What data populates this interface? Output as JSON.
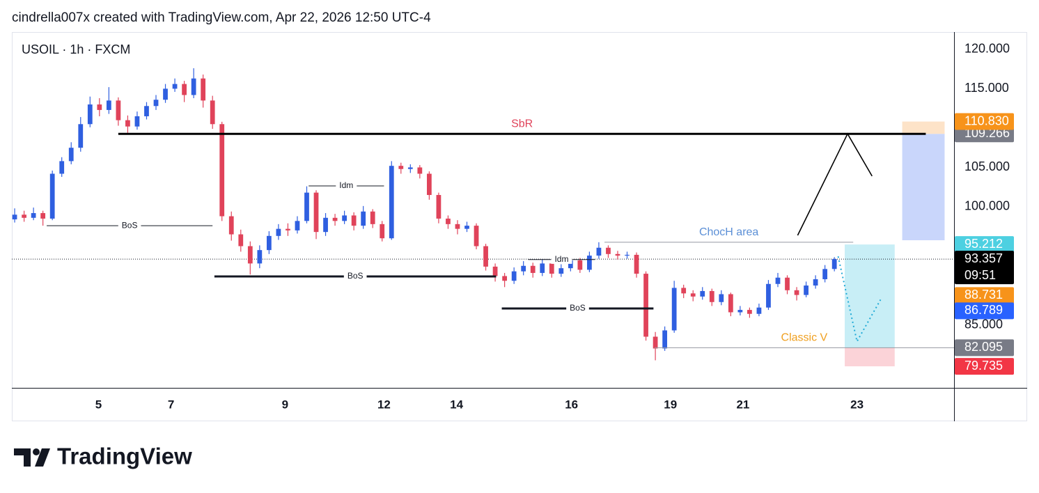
{
  "chart_data": {
    "type": "candlestick",
    "credit": "cindrella007x created with TradingView.com, Apr 22, 2026 12:50 UTC-4",
    "title": "USOIL · 1h · FXCM",
    "brand": "TradingView",
    "up_color": "#2f5fe0",
    "down_color": "#e0435a",
    "open": [
      98.4,
      99.0,
      98.6,
      99.2,
      98.5,
      104.2,
      105.8,
      107.5,
      110.5,
      113.0,
      112.3,
      113.5,
      111.0,
      110.2,
      111.5,
      112.8,
      113.6,
      115.0,
      115.6,
      114.2,
      116.3,
      113.5,
      110.5,
      98.8,
      96.5,
      95.0,
      92.8,
      94.5,
      96.3,
      97.2,
      97.0,
      98.2,
      101.8,
      96.8,
      98.6,
      98.2,
      98.9,
      97.6,
      99.4,
      97.8,
      96.0,
      105.2,
      104.8,
      105.0,
      104.2,
      101.5,
      98.5,
      97.8,
      97.2,
      97.6,
      95.0,
      92.4,
      91.2,
      90.6,
      91.8,
      92.5,
      91.6,
      92.8,
      91.5,
      92.2,
      93.2,
      92.0,
      93.8,
      94.8,
      94.0,
      93.8,
      93.9,
      91.5,
      83.5,
      82.0,
      84.3,
      89.7,
      89.0,
      88.6,
      89.3,
      87.9,
      88.9,
      86.6,
      86.9,
      86.4,
      87.2,
      90.2,
      91.0,
      89.4,
      88.8,
      90.0,
      90.8,
      92.1
    ],
    "high": [
      99.8,
      99.5,
      99.9,
      99.5,
      104.6,
      106.3,
      108.2,
      111.4,
      114.0,
      113.8,
      115.2,
      113.9,
      111.6,
      112.1,
      113.3,
      114.2,
      115.6,
      116.3,
      116.0,
      117.6,
      116.8,
      114.1,
      110.8,
      99.4,
      97.1,
      95.6,
      95.1,
      96.9,
      97.8,
      97.9,
      98.8,
      102.6,
      102.1,
      99.2,
      99.1,
      99.5,
      99.3,
      100.1,
      99.7,
      98.2,
      105.8,
      105.6,
      105.4,
      105.3,
      104.5,
      101.8,
      98.9,
      98.3,
      98.1,
      97.9,
      95.3,
      92.8,
      91.6,
      92.3,
      93.1,
      92.9,
      93.3,
      93.1,
      92.7,
      93.7,
      93.5,
      94.3,
      95.5,
      95.1,
      94.4,
      94.3,
      94.2,
      91.8,
      84.1,
      84.8,
      90.6,
      90.1,
      89.4,
      89.8,
      89.6,
      89.4,
      89.1,
      87.4,
      87.2,
      87.7,
      90.7,
      91.6,
      91.3,
      89.8,
      90.5,
      91.3,
      92.6,
      93.6
    ],
    "low": [
      98.0,
      98.1,
      98.3,
      97.6,
      98.3,
      103.8,
      105.4,
      107.0,
      110.1,
      111.5,
      111.8,
      110.3,
      109.4,
      109.8,
      111.1,
      112.3,
      113.2,
      114.6,
      113.3,
      113.8,
      112.6,
      109.9,
      98.2,
      95.7,
      94.3,
      91.4,
      92.2,
      94.0,
      95.8,
      96.3,
      96.6,
      97.9,
      95.9,
      96.3,
      97.6,
      97.8,
      97.0,
      97.2,
      97.3,
      95.6,
      95.8,
      104.2,
      104.3,
      103.6,
      100.9,
      97.9,
      97.2,
      96.5,
      96.8,
      94.6,
      91.9,
      90.5,
      89.8,
      90.2,
      91.3,
      91.0,
      91.2,
      91.0,
      91.1,
      91.8,
      91.6,
      91.7,
      93.4,
      93.5,
      93.3,
      93.4,
      91.0,
      83.0,
      80.5,
      81.7,
      84.0,
      88.4,
      88.0,
      88.2,
      87.4,
      87.5,
      86.1,
      86.2,
      85.9,
      86.1,
      86.9,
      89.8,
      88.9,
      88.1,
      88.5,
      89.6,
      90.4,
      91.8
    ],
    "close": [
      99.0,
      98.6,
      99.2,
      98.5,
      104.2,
      105.8,
      107.5,
      110.5,
      113.0,
      112.3,
      113.5,
      111.0,
      110.2,
      111.5,
      112.8,
      113.6,
      115.0,
      115.6,
      114.2,
      116.3,
      113.5,
      110.5,
      98.8,
      96.5,
      95.0,
      92.8,
      94.5,
      96.3,
      97.2,
      97.0,
      98.2,
      101.8,
      96.8,
      98.6,
      98.2,
      98.9,
      97.6,
      99.4,
      97.8,
      96.0,
      105.2,
      104.8,
      105.0,
      104.2,
      101.5,
      98.5,
      97.8,
      97.2,
      97.6,
      95.0,
      92.4,
      91.2,
      90.6,
      91.8,
      92.5,
      91.6,
      92.8,
      91.5,
      92.2,
      93.2,
      92.0,
      93.8,
      94.8,
      94.0,
      93.8,
      93.9,
      91.5,
      83.5,
      82.0,
      84.3,
      89.7,
      89.0,
      88.6,
      89.3,
      87.9,
      88.9,
      86.6,
      86.9,
      86.4,
      87.2,
      90.2,
      91.0,
      89.4,
      88.8,
      90.0,
      90.8,
      92.1,
      93.36
    ],
    "xlim": [
      -0.3,
      99.7
    ],
    "xticks": [
      {
        "value": 8.9,
        "label": "5"
      },
      {
        "value": 16.6,
        "label": "7"
      },
      {
        "value": 28.7,
        "label": "9"
      },
      {
        "value": 39.2,
        "label": "12"
      },
      {
        "value": 46.9,
        "label": "14"
      },
      {
        "value": 59.1,
        "label": "16"
      },
      {
        "value": 69.6,
        "label": "19"
      },
      {
        "value": 77.3,
        "label": "21"
      },
      {
        "value": 89.4,
        "label": "23"
      }
    ],
    "ylim": [
      77.0,
      122.2
    ],
    "yticks": [
      {
        "value": 85,
        "label": "85.000"
      },
      {
        "value": 100,
        "label": "100.000"
      },
      {
        "value": 105,
        "label": "105.000"
      },
      {
        "value": 115,
        "label": "115.000"
      },
      {
        "value": 120,
        "label": "120.000"
      }
    ],
    "regions": [
      {
        "y": [
          109.266,
          95.75
        ],
        "x": [
          94.2,
          98.7
        ],
        "color": "#c9d6fb"
      },
      {
        "y": [
          110.83,
          109.266
        ],
        "x": [
          94.2,
          98.7
        ],
        "color": "#fde3c8"
      },
      {
        "y": [
          95.212,
          82.095
        ],
        "x": [
          88.1,
          93.4
        ],
        "color": "#c8eef6"
      },
      {
        "y": [
          82.095,
          79.735
        ],
        "x": [
          88.1,
          93.4
        ],
        "color": "#fbd3d8"
      }
    ],
    "lines": [
      {
        "label": "BoS",
        "price": 97.6,
        "x": [
          3.4,
          21.0
        ],
        "width": 1,
        "color": "#131722",
        "label_color": "#131722",
        "label_pos": "on"
      },
      {
        "label": "BoS",
        "price": 91.15,
        "x": [
          21.2,
          51.1
        ],
        "width": 3,
        "color": "#131722",
        "label_color": "#131722",
        "label_pos": "on"
      },
      {
        "label": "BoS",
        "price": 87.08,
        "x": [
          51.7,
          67.8
        ],
        "width": 3,
        "color": "#131722",
        "label_color": "#131722",
        "label_pos": "on"
      },
      {
        "label": "Idm",
        "price": 102.65,
        "x": [
          31.2,
          39.2
        ],
        "width": 1,
        "color": "#131722",
        "label_color": "#131722",
        "label_pos": "on"
      },
      {
        "label": "Idm",
        "price": 93.3,
        "x": [
          54.5,
          61.6
        ],
        "width": 1,
        "color": "#131722",
        "label_color": "#131722",
        "label_pos": "on"
      },
      {
        "label": "SbR",
        "price": 109.266,
        "x": [
          11.0,
          96.7
        ],
        "width": 3,
        "color": "#000000",
        "label_color": "#e0435a",
        "label_pos": "above"
      },
      {
        "label": "ChocH area",
        "price": 95.5,
        "x": [
          62.6,
          89.0
        ],
        "width": 1,
        "color": "#9598a1",
        "label_color": "#5b8fd6",
        "label_pos": "above"
      },
      {
        "label": "Classic V",
        "price": 82.095,
        "x": [
          67.9,
          99.7
        ],
        "width": 1,
        "color": "#9598a1",
        "label_color": "#f0a020",
        "label_pos": "above"
      }
    ],
    "paths": [
      {
        "x": [
          83.1,
          88.4,
          91.0
        ],
        "y": [
          96.37,
          109.27,
          103.9
        ],
        "color": "#000000",
        "dashed": false
      },
      {
        "x": [
          87.4,
          89.4,
          91.9
        ],
        "y": [
          93.7,
          82.9,
          88.2
        ],
        "color": "#1fa9d6",
        "dashed": true
      }
    ],
    "badges": [
      {
        "value": 109.266,
        "label": "109.266",
        "color": "#787b86"
      },
      {
        "value": 110.83,
        "label": "110.830",
        "color": "#f7931a"
      },
      {
        "value": 95.212,
        "label": "95.212",
        "color": "#4dd0e1"
      },
      {
        "value": 93.357,
        "label": "93.357",
        "color": "#000000",
        "countdown": "09:51"
      },
      {
        "value": 88.731,
        "label": "88.731",
        "color": "#f7931a"
      },
      {
        "value": 86.789,
        "label": "86.789",
        "color": "#2962ff"
      },
      {
        "value": 82.095,
        "label": "82.095",
        "color": "#787b86"
      },
      {
        "value": 79.735,
        "label": "79.735",
        "color": "#f23645"
      }
    ]
  }
}
